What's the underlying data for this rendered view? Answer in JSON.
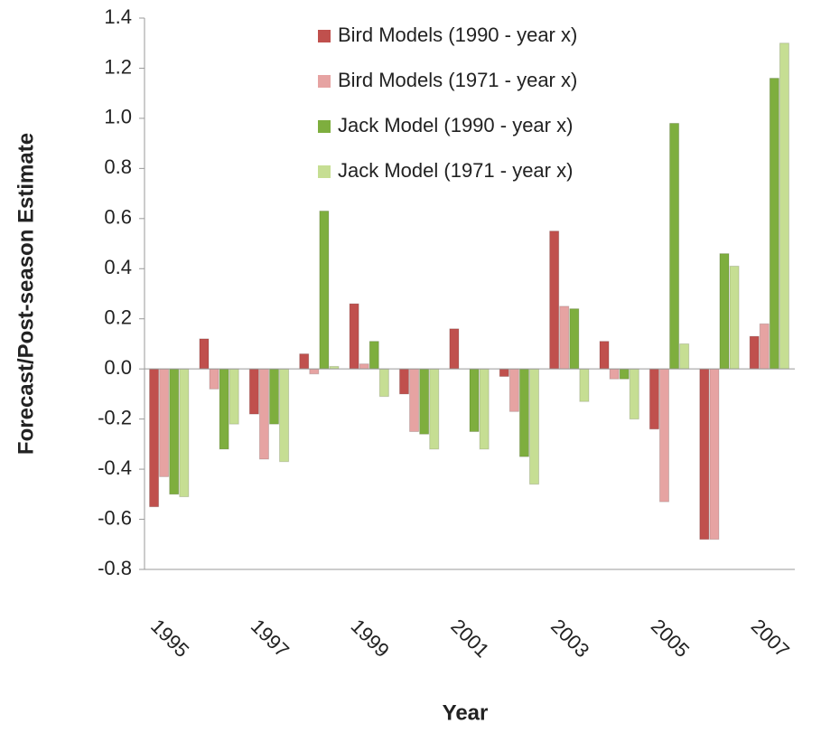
{
  "chart_data": {
    "type": "bar",
    "x_label": "Year",
    "y_label": "Forecast/Post-season Estimate",
    "categories": [
      "1995",
      null,
      "1997",
      null,
      "1999",
      null,
      "2001",
      null,
      "2003",
      null,
      "2005",
      null,
      "2007"
    ],
    "series": [
      {
        "name": "Bird Models (1990 - year x)",
        "color": "#c0504d",
        "values": [
          -0.55,
          0.12,
          -0.18,
          0.06,
          0.26,
          -0.1,
          0.16,
          -0.03,
          0.55,
          0.11,
          -0.24,
          -0.68,
          0.13
        ]
      },
      {
        "name": "Bird Models (1971 - year x)",
        "color": "#e6a3a2",
        "values": [
          -0.43,
          -0.08,
          -0.36,
          -0.02,
          0.02,
          -0.25,
          0.0,
          -0.17,
          0.25,
          -0.04,
          -0.53,
          -0.68,
          0.18
        ]
      },
      {
        "name": "Jack Model (1990 - year x)",
        "color": "#7eae3e",
        "values": [
          -0.5,
          -0.32,
          -0.22,
          0.63,
          0.11,
          -0.26,
          -0.25,
          -0.35,
          0.24,
          -0.04,
          0.98,
          0.46,
          1.16
        ]
      },
      {
        "name": "Jack Model (1971 - year x)",
        "color": "#c6de93",
        "values": [
          -0.51,
          -0.22,
          -0.37,
          0.01,
          -0.11,
          -0.32,
          -0.32,
          -0.46,
          -0.13,
          -0.2,
          0.1,
          0.41,
          1.3
        ]
      }
    ],
    "ylim": [
      -0.8,
      1.4
    ],
    "yticks": [
      -0.8,
      -0.6,
      -0.4,
      -0.2,
      {
        "value": 0,
        "label": "0.0"
      },
      0.2,
      0.4,
      0.6,
      0.8,
      {
        "value": 1,
        "label": "1.0"
      },
      1.2,
      1.4
    ],
    "legend": "top"
  }
}
